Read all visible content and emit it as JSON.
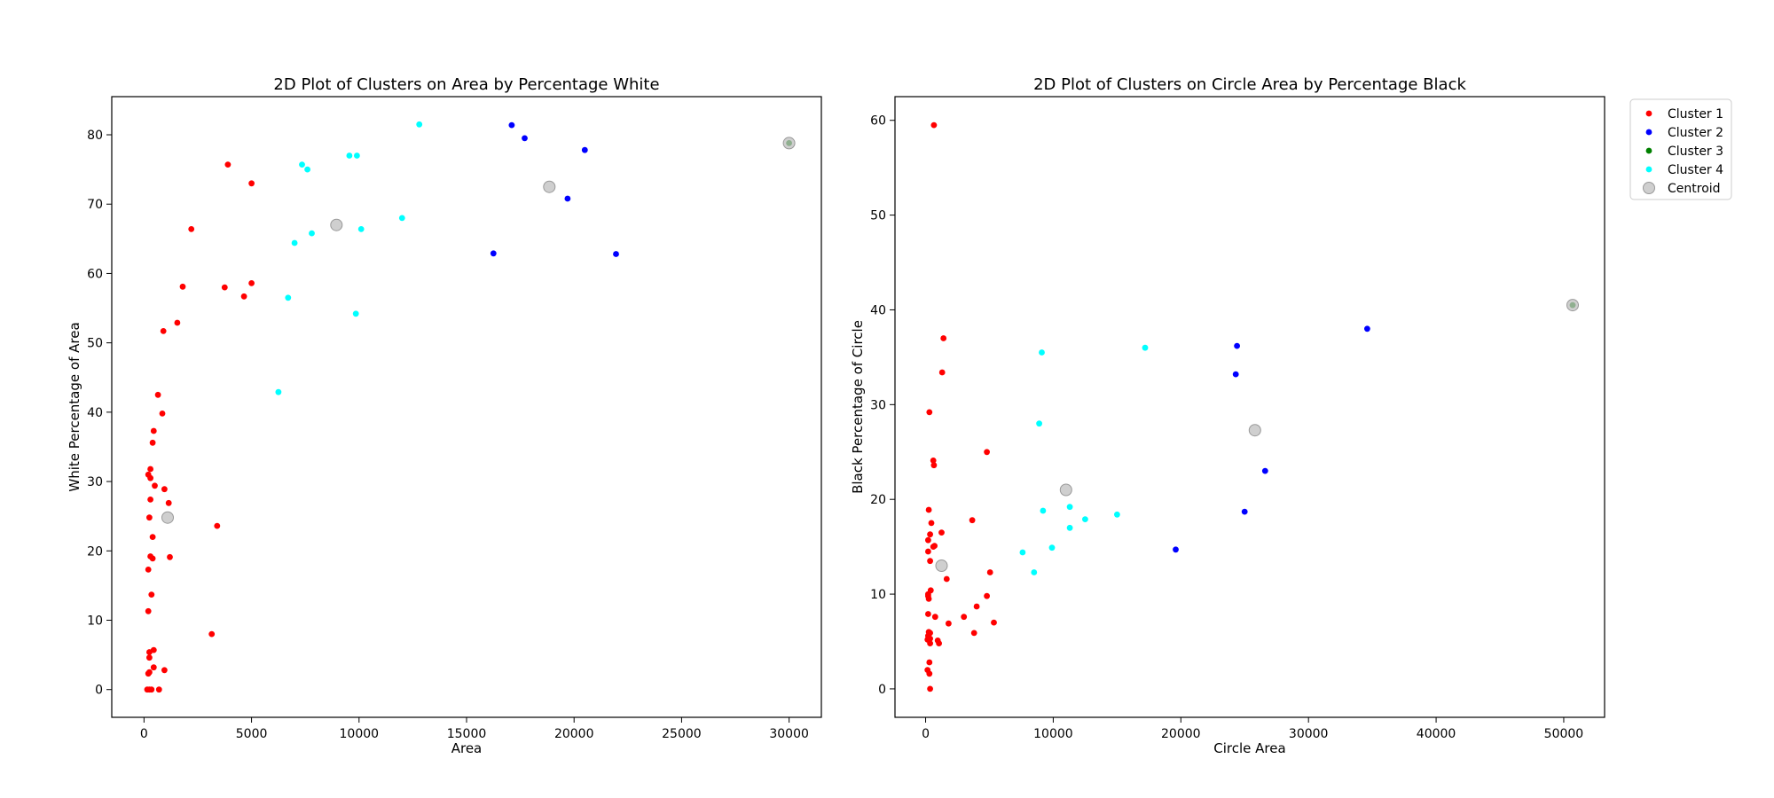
{
  "chart_data": [
    {
      "type": "scatter",
      "title": "2D Plot of Clusters on Area by Percentage White",
      "xlabel": "Area",
      "ylabel": "White Percentage of Area",
      "xlim": [
        -1500,
        31500
      ],
      "ylim": [
        -4,
        85.5
      ],
      "xticks": [
        0,
        5000,
        10000,
        15000,
        20000,
        25000,
        30000
      ],
      "yticks": [
        0,
        10,
        20,
        30,
        40,
        50,
        60,
        70,
        80
      ],
      "grid": false,
      "series": [
        {
          "name": "Cluster 1",
          "color": "#ff0000",
          "points": [
            [
              3900,
              75.7
            ],
            [
              5000,
              73
            ],
            [
              2200,
              66.4
            ],
            [
              1800,
              58.1
            ],
            [
              3750,
              58
            ],
            [
              5000,
              58.6
            ],
            [
              4650,
              56.7
            ],
            [
              1550,
              52.9
            ],
            [
              900,
              51.7
            ],
            [
              650,
              42.5
            ],
            [
              850,
              39.8
            ],
            [
              450,
              37.3
            ],
            [
              400,
              35.6
            ],
            [
              200,
              31
            ],
            [
              300,
              31.8
            ],
            [
              300,
              30.5
            ],
            [
              500,
              29.4
            ],
            [
              950,
              28.9
            ],
            [
              300,
              27.4
            ],
            [
              1150,
              26.9
            ],
            [
              250,
              24.8
            ],
            [
              3400,
              23.6
            ],
            [
              400,
              22
            ],
            [
              300,
              19.2
            ],
            [
              400,
              18.9
            ],
            [
              1200,
              19.1
            ],
            [
              200,
              17.3
            ],
            [
              350,
              13.7
            ],
            [
              200,
              11.3
            ],
            [
              3150,
              8
            ],
            [
              250,
              5.4
            ],
            [
              450,
              5.7
            ],
            [
              250,
              4.6
            ],
            [
              450,
              3.2
            ],
            [
              950,
              2.8
            ],
            [
              250,
              2.5
            ],
            [
              200,
              2.3
            ],
            [
              150,
              0
            ],
            [
              250,
              0
            ],
            [
              350,
              0
            ],
            [
              700,
              0
            ]
          ]
        },
        {
          "name": "Cluster 2",
          "color": "#0000ff",
          "points": [
            [
              17100,
              81.4
            ],
            [
              17700,
              79.5
            ],
            [
              20500,
              77.8
            ],
            [
              19700,
              70.8
            ],
            [
              16250,
              62.9
            ],
            [
              21950,
              62.8
            ]
          ]
        },
        {
          "name": "Cluster 3",
          "color": "#008000",
          "points": [
            [
              30000,
              78.8
            ]
          ]
        },
        {
          "name": "Cluster 4",
          "color": "#00ffff",
          "points": [
            [
              12800,
              81.5
            ],
            [
              7350,
              75.7
            ],
            [
              7600,
              75
            ],
            [
              9550,
              77
            ],
            [
              9900,
              77
            ],
            [
              12000,
              68
            ],
            [
              10100,
              66.4
            ],
            [
              7800,
              65.8
            ],
            [
              7000,
              64.4
            ],
            [
              6700,
              56.5
            ],
            [
              9850,
              54.2
            ],
            [
              6250,
              42.9
            ]
          ]
        },
        {
          "name": "Centroid",
          "color": "#bfbfbf",
          "points": [
            [
              1100,
              24.8
            ],
            [
              8950,
              67
            ],
            [
              18850,
              72.5
            ],
            [
              30000,
              78.8
            ]
          ]
        }
      ]
    },
    {
      "type": "scatter",
      "title": "2D Plot of Clusters on Circle Area by Percentage Black",
      "xlabel": "Circle Area",
      "ylabel": "Black Percentage of Circle",
      "xlim": [
        -2400,
        53200
      ],
      "ylim": [
        -3,
        62.5
      ],
      "xticks": [
        0,
        10000,
        20000,
        30000,
        40000,
        50000
      ],
      "yticks": [
        0,
        10,
        20,
        30,
        40,
        50,
        60
      ],
      "grid": false,
      "legend": {
        "position": "outside-top-right",
        "entries": [
          {
            "label": "Cluster 1",
            "color": "#ff0000"
          },
          {
            "label": "Cluster 2",
            "color": "#0000ff"
          },
          {
            "label": "Cluster 3",
            "color": "#008000"
          },
          {
            "label": "Cluster 4",
            "color": "#00ffff"
          },
          {
            "label": "Centroid",
            "color": "#bfbfbf"
          }
        ]
      },
      "series": [
        {
          "name": "Cluster 1",
          "color": "#ff0000",
          "points": [
            [
              650,
              59.5
            ],
            [
              1400,
              37
            ],
            [
              1300,
              33.4
            ],
            [
              300,
              29.2
            ],
            [
              4800,
              25
            ],
            [
              600,
              24.1
            ],
            [
              650,
              23.6
            ],
            [
              250,
              18.9
            ],
            [
              3650,
              17.8
            ],
            [
              450,
              17.5
            ],
            [
              1250,
              16.5
            ],
            [
              350,
              16.3
            ],
            [
              200,
              15.7
            ],
            [
              600,
              15
            ],
            [
              700,
              15.1
            ],
            [
              200,
              14.5
            ],
            [
              350,
              13.5
            ],
            [
              5050,
              12.3
            ],
            [
              1650,
              11.6
            ],
            [
              400,
              10.4
            ],
            [
              200,
              10
            ],
            [
              200,
              9.8
            ],
            [
              250,
              9.5
            ],
            [
              4800,
              9.8
            ],
            [
              4000,
              8.7
            ],
            [
              200,
              7.9
            ],
            [
              750,
              7.6
            ],
            [
              3000,
              7.6
            ],
            [
              1800,
              6.9
            ],
            [
              5350,
              7
            ],
            [
              250,
              6
            ],
            [
              350,
              5.9
            ],
            [
              200,
              5.6
            ],
            [
              150,
              5.2
            ],
            [
              350,
              5.3
            ],
            [
              3800,
              5.9
            ],
            [
              950,
              5.1
            ],
            [
              1050,
              4.8
            ],
            [
              350,
              4.8
            ],
            [
              300,
              2.8
            ],
            [
              150,
              2
            ],
            [
              300,
              1.6
            ],
            [
              350,
              0
            ]
          ]
        },
        {
          "name": "Cluster 2",
          "color": "#0000ff",
          "points": [
            [
              34600,
              38
            ],
            [
              24400,
              36.2
            ],
            [
              24300,
              33.2
            ],
            [
              26600,
              23
            ],
            [
              25000,
              18.7
            ],
            [
              19600,
              14.7
            ]
          ]
        },
        {
          "name": "Cluster 3",
          "color": "#008000",
          "points": [
            [
              50700,
              40.5
            ]
          ]
        },
        {
          "name": "Cluster 4",
          "color": "#00ffff",
          "points": [
            [
              9100,
              35.5
            ],
            [
              17200,
              36
            ],
            [
              8900,
              28
            ],
            [
              11300,
              19.2
            ],
            [
              9200,
              18.8
            ],
            [
              12500,
              17.9
            ],
            [
              15000,
              18.4
            ],
            [
              11300,
              17
            ],
            [
              9900,
              14.9
            ],
            [
              7600,
              14.4
            ],
            [
              8500,
              12.3
            ]
          ]
        },
        {
          "name": "Centroid",
          "color": "#bfbfbf",
          "points": [
            [
              1250,
              13
            ],
            [
              11000,
              21
            ],
            [
              25800,
              27.3
            ],
            [
              50700,
              40.5
            ]
          ]
        }
      ]
    }
  ]
}
